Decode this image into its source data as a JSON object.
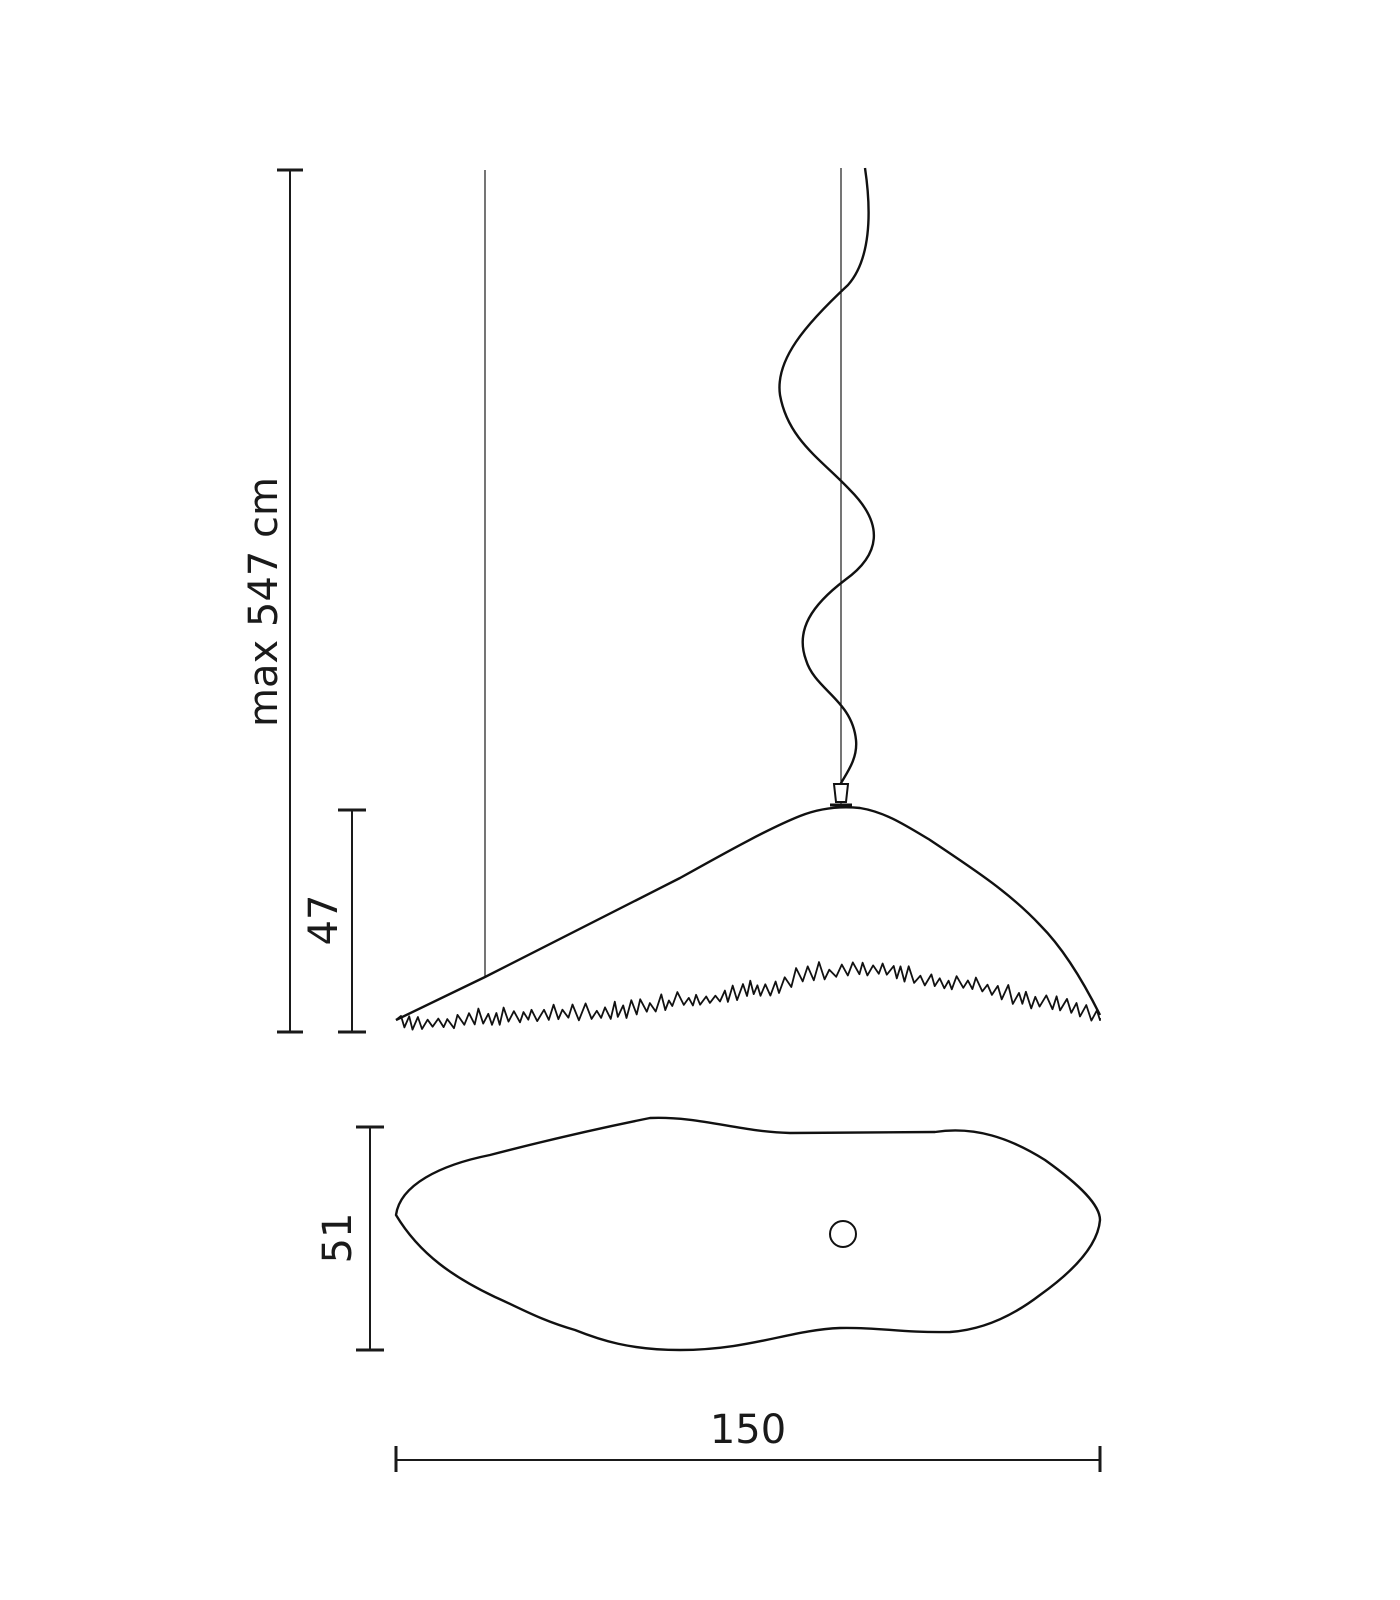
{
  "dimensions": {
    "overall_height": "max 547 cm",
    "shade_height": "47",
    "depth": "51",
    "width": "150"
  }
}
